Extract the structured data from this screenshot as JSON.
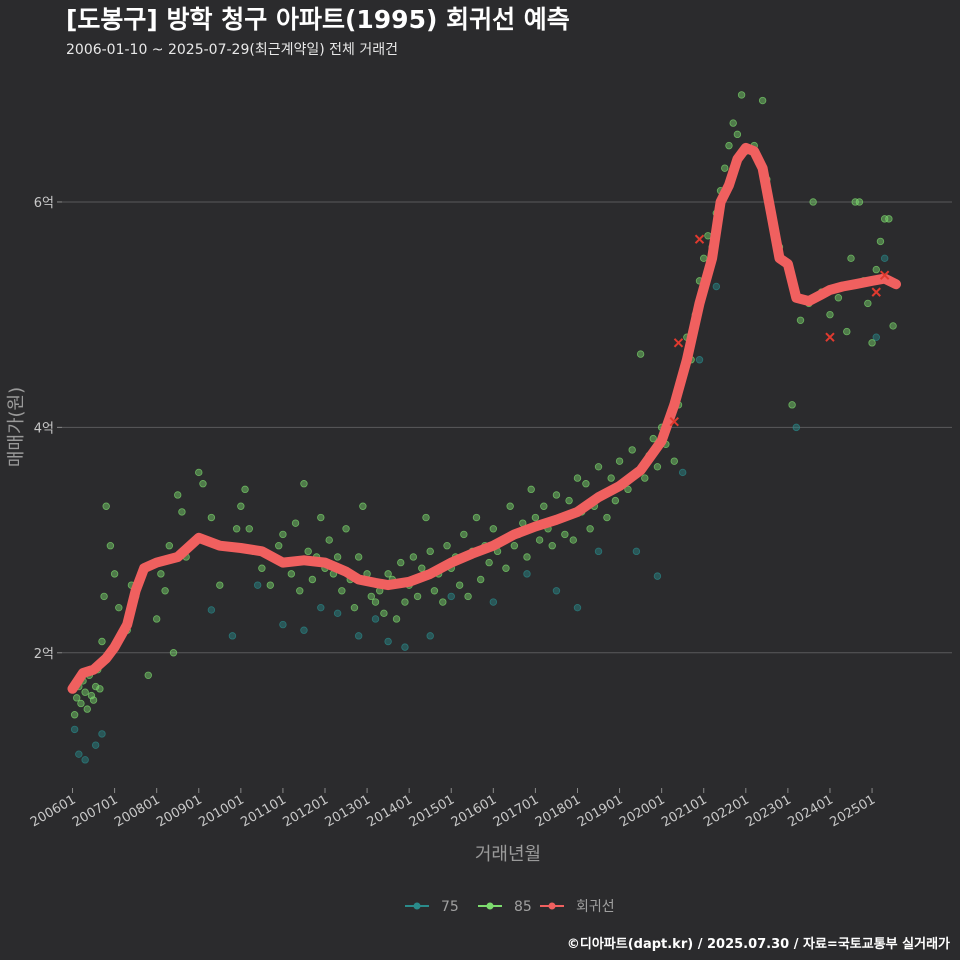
{
  "chart_data": {
    "type": "scatter",
    "title": "[도봉구] 방학 청구 아파트(1995) 회귀선 예측",
    "subtitle": "2006-01-10 ~ 2025-07-29(최근계약일) 전체 거래건",
    "xlabel": "거래년월",
    "ylabel": "매매가(원)",
    "caption": "©디아파트(dapt.kr) / 2025.07.30 / 자료=국토교통부 실거래가",
    "x_tick_labels": [
      "200601",
      "200701",
      "200801",
      "200901",
      "201001",
      "201101",
      "201201",
      "201301",
      "201401",
      "201501",
      "201601",
      "201701",
      "201801",
      "201901",
      "202001",
      "202101",
      "202201",
      "202301",
      "202401",
      "202501"
    ],
    "y_tick_labels": [
      {
        "value": 2,
        "label": "2억"
      },
      {
        "value": 4,
        "label": "4억"
      },
      {
        "value": 6,
        "label": "6억"
      }
    ],
    "xlim": [
      2005.75,
      2026.9
    ],
    "ylim": [
      0.8,
      7.1
    ],
    "grid": true,
    "legend_position": "bottom",
    "legend": [
      {
        "name": "75",
        "color": "#2a8b8b"
      },
      {
        "name": "85",
        "color": "#7ddc6e"
      },
      {
        "name": "회귀선",
        "color": "#f0605f"
      }
    ],
    "series": [
      {
        "name": "75",
        "color": "#2a8b8b",
        "points": [
          [
            2006.05,
            1.32
          ],
          [
            2006.15,
            1.1
          ],
          [
            2006.3,
            1.05
          ],
          [
            2006.55,
            1.18
          ],
          [
            2006.7,
            1.28
          ],
          [
            2009.3,
            2.38
          ],
          [
            2009.8,
            2.15
          ],
          [
            2010.4,
            2.6
          ],
          [
            2011.0,
            2.25
          ],
          [
            2011.5,
            2.2
          ],
          [
            2011.9,
            2.4
          ],
          [
            2012.3,
            2.35
          ],
          [
            2012.8,
            2.15
          ],
          [
            2013.2,
            2.3
          ],
          [
            2013.5,
            2.1
          ],
          [
            2013.9,
            2.05
          ],
          [
            2014.5,
            2.15
          ],
          [
            2015.0,
            2.5
          ],
          [
            2016.0,
            2.45
          ],
          [
            2016.8,
            2.7
          ],
          [
            2017.5,
            2.55
          ],
          [
            2018.0,
            2.4
          ],
          [
            2018.5,
            2.9
          ],
          [
            2019.4,
            2.9
          ],
          [
            2019.9,
            2.68
          ],
          [
            2020.5,
            3.6
          ],
          [
            2020.9,
            4.6
          ],
          [
            2021.3,
            5.25
          ],
          [
            2023.2,
            4.0
          ],
          [
            2025.1,
            4.8
          ],
          [
            2025.3,
            5.5
          ]
        ]
      },
      {
        "name": "85",
        "color": "#7ddc6e",
        "points": [
          [
            2006.05,
            1.45
          ],
          [
            2006.1,
            1.6
          ],
          [
            2006.15,
            1.7
          ],
          [
            2006.2,
            1.55
          ],
          [
            2006.25,
            1.75
          ],
          [
            2006.3,
            1.65
          ],
          [
            2006.35,
            1.5
          ],
          [
            2006.4,
            1.8
          ],
          [
            2006.45,
            1.62
          ],
          [
            2006.5,
            1.58
          ],
          [
            2006.55,
            1.7
          ],
          [
            2006.6,
            1.85
          ],
          [
            2006.65,
            1.68
          ],
          [
            2006.7,
            2.1
          ],
          [
            2006.75,
            2.5
          ],
          [
            2006.8,
            3.3
          ],
          [
            2006.9,
            2.95
          ],
          [
            2007.0,
            2.7
          ],
          [
            2007.1,
            2.4
          ],
          [
            2007.3,
            2.2
          ],
          [
            2007.4,
            2.6
          ],
          [
            2007.5,
            2.5
          ],
          [
            2007.6,
            2.65
          ],
          [
            2007.8,
            1.8
          ],
          [
            2008.0,
            2.3
          ],
          [
            2008.1,
            2.7
          ],
          [
            2008.2,
            2.55
          ],
          [
            2008.3,
            2.95
          ],
          [
            2008.4,
            2.0
          ],
          [
            2008.5,
            3.4
          ],
          [
            2008.6,
            3.25
          ],
          [
            2008.7,
            2.85
          ],
          [
            2008.9,
            3.0
          ],
          [
            2009.0,
            3.6
          ],
          [
            2009.1,
            3.5
          ],
          [
            2009.3,
            3.2
          ],
          [
            2009.5,
            2.6
          ],
          [
            2009.7,
            2.95
          ],
          [
            2009.9,
            3.1
          ],
          [
            2010.0,
            3.3
          ],
          [
            2010.1,
            3.45
          ],
          [
            2010.2,
            3.1
          ],
          [
            2010.3,
            2.9
          ],
          [
            2010.5,
            2.75
          ],
          [
            2010.7,
            2.6
          ],
          [
            2010.9,
            2.95
          ],
          [
            2011.0,
            3.05
          ],
          [
            2011.1,
            2.8
          ],
          [
            2011.2,
            2.7
          ],
          [
            2011.3,
            3.15
          ],
          [
            2011.4,
            2.55
          ],
          [
            2011.5,
            3.5
          ],
          [
            2011.6,
            2.9
          ],
          [
            2011.7,
            2.65
          ],
          [
            2011.8,
            2.85
          ],
          [
            2011.9,
            3.2
          ],
          [
            2012.0,
            2.75
          ],
          [
            2012.1,
            3.0
          ],
          [
            2012.2,
            2.7
          ],
          [
            2012.3,
            2.85
          ],
          [
            2012.4,
            2.55
          ],
          [
            2012.5,
            3.1
          ],
          [
            2012.6,
            2.65
          ],
          [
            2012.7,
            2.4
          ],
          [
            2012.8,
            2.85
          ],
          [
            2012.9,
            3.3
          ],
          [
            2013.0,
            2.7
          ],
          [
            2013.1,
            2.5
          ],
          [
            2013.2,
            2.45
          ],
          [
            2013.3,
            2.55
          ],
          [
            2013.4,
            2.35
          ],
          [
            2013.5,
            2.7
          ],
          [
            2013.6,
            2.65
          ],
          [
            2013.7,
            2.3
          ],
          [
            2013.8,
            2.8
          ],
          [
            2013.9,
            2.45
          ],
          [
            2014.0,
            2.6
          ],
          [
            2014.1,
            2.85
          ],
          [
            2014.2,
            2.5
          ],
          [
            2014.3,
            2.75
          ],
          [
            2014.4,
            3.2
          ],
          [
            2014.5,
            2.9
          ],
          [
            2014.6,
            2.55
          ],
          [
            2014.7,
            2.7
          ],
          [
            2014.8,
            2.45
          ],
          [
            2014.9,
            2.95
          ],
          [
            2015.0,
            2.75
          ],
          [
            2015.1,
            2.85
          ],
          [
            2015.2,
            2.6
          ],
          [
            2015.3,
            3.05
          ],
          [
            2015.4,
            2.5
          ],
          [
            2015.5,
            2.9
          ],
          [
            2015.6,
            3.2
          ],
          [
            2015.7,
            2.65
          ],
          [
            2015.8,
            2.95
          ],
          [
            2015.9,
            2.8
          ],
          [
            2016.0,
            3.1
          ],
          [
            2016.1,
            2.9
          ],
          [
            2016.2,
            3.0
          ],
          [
            2016.3,
            2.75
          ],
          [
            2016.4,
            3.3
          ],
          [
            2016.5,
            2.95
          ],
          [
            2016.6,
            3.05
          ],
          [
            2016.7,
            3.15
          ],
          [
            2016.8,
            2.85
          ],
          [
            2016.9,
            3.45
          ],
          [
            2017.0,
            3.2
          ],
          [
            2017.1,
            3.0
          ],
          [
            2017.2,
            3.3
          ],
          [
            2017.3,
            3.1
          ],
          [
            2017.4,
            2.95
          ],
          [
            2017.5,
            3.4
          ],
          [
            2017.6,
            3.2
          ],
          [
            2017.7,
            3.05
          ],
          [
            2017.8,
            3.35
          ],
          [
            2017.9,
            3.0
          ],
          [
            2018.0,
            3.55
          ],
          [
            2018.1,
            3.25
          ],
          [
            2018.2,
            3.5
          ],
          [
            2018.3,
            3.1
          ],
          [
            2018.4,
            3.3
          ],
          [
            2018.5,
            3.65
          ],
          [
            2018.6,
            3.4
          ],
          [
            2018.7,
            3.2
          ],
          [
            2018.8,
            3.55
          ],
          [
            2018.9,
            3.35
          ],
          [
            2019.0,
            3.7
          ],
          [
            2019.1,
            3.5
          ],
          [
            2019.2,
            3.45
          ],
          [
            2019.3,
            3.8
          ],
          [
            2019.4,
            3.6
          ],
          [
            2019.5,
            4.65
          ],
          [
            2019.6,
            3.55
          ],
          [
            2019.7,
            3.75
          ],
          [
            2019.8,
            3.9
          ],
          [
            2019.9,
            3.65
          ],
          [
            2020.0,
            4.0
          ],
          [
            2020.1,
            3.85
          ],
          [
            2020.2,
            4.1
          ],
          [
            2020.3,
            3.7
          ],
          [
            2020.4,
            4.2
          ],
          [
            2020.5,
            4.5
          ],
          [
            2020.6,
            4.8
          ],
          [
            2020.7,
            4.6
          ],
          [
            2020.8,
            5.0
          ],
          [
            2020.9,
            5.3
          ],
          [
            2021.0,
            5.5
          ],
          [
            2021.1,
            5.7
          ],
          [
            2021.2,
            5.6
          ],
          [
            2021.3,
            5.9
          ],
          [
            2021.4,
            6.1
          ],
          [
            2021.5,
            6.3
          ],
          [
            2021.6,
            6.5
          ],
          [
            2021.7,
            6.7
          ],
          [
            2021.8,
            6.6
          ],
          [
            2021.9,
            6.95
          ],
          [
            2022.0,
            6.45
          ],
          [
            2022.2,
            6.5
          ],
          [
            2022.3,
            6.35
          ],
          [
            2022.4,
            6.9
          ],
          [
            2022.5,
            6.2
          ],
          [
            2022.8,
            5.6
          ],
          [
            2023.1,
            4.2
          ],
          [
            2023.3,
            4.95
          ],
          [
            2023.5,
            5.1
          ],
          [
            2023.6,
            6.0
          ],
          [
            2023.8,
            5.2
          ],
          [
            2024.0,
            5.0
          ],
          [
            2024.2,
            5.15
          ],
          [
            2024.4,
            4.85
          ],
          [
            2024.5,
            5.5
          ],
          [
            2024.6,
            6.0
          ],
          [
            2024.7,
            6.0
          ],
          [
            2024.8,
            5.3
          ],
          [
            2024.9,
            5.1
          ],
          [
            2025.0,
            4.75
          ],
          [
            2025.1,
            5.4
          ],
          [
            2025.2,
            5.65
          ],
          [
            2025.3,
            5.85
          ],
          [
            2025.4,
            5.85
          ],
          [
            2025.5,
            4.9
          ]
        ]
      }
    ],
    "regression": {
      "name": "회귀선",
      "color": "#f0605f",
      "points": [
        [
          2006.0,
          1.68
        ],
        [
          2006.25,
          1.82
        ],
        [
          2006.5,
          1.85
        ],
        [
          2006.8,
          1.95
        ],
        [
          2007.0,
          2.05
        ],
        [
          2007.3,
          2.25
        ],
        [
          2007.5,
          2.55
        ],
        [
          2007.7,
          2.75
        ],
        [
          2008.0,
          2.8
        ],
        [
          2008.5,
          2.85
        ],
        [
          2009.0,
          3.02
        ],
        [
          2009.5,
          2.95
        ],
        [
          2010.0,
          2.93
        ],
        [
          2010.5,
          2.9
        ],
        [
          2011.0,
          2.8
        ],
        [
          2011.5,
          2.82
        ],
        [
          2012.0,
          2.8
        ],
        [
          2012.5,
          2.72
        ],
        [
          2012.8,
          2.65
        ],
        [
          2013.2,
          2.62
        ],
        [
          2013.5,
          2.6
        ],
        [
          2014.0,
          2.63
        ],
        [
          2014.5,
          2.7
        ],
        [
          2015.0,
          2.8
        ],
        [
          2015.5,
          2.88
        ],
        [
          2016.0,
          2.95
        ],
        [
          2016.5,
          3.05
        ],
        [
          2017.0,
          3.12
        ],
        [
          2017.5,
          3.18
        ],
        [
          2018.0,
          3.25
        ],
        [
          2018.5,
          3.38
        ],
        [
          2019.0,
          3.48
        ],
        [
          2019.5,
          3.62
        ],
        [
          2020.0,
          3.88
        ],
        [
          2020.3,
          4.2
        ],
        [
          2020.6,
          4.6
        ],
        [
          2020.9,
          5.1
        ],
        [
          2021.2,
          5.5
        ],
        [
          2021.4,
          6.0
        ],
        [
          2021.6,
          6.15
        ],
        [
          2021.8,
          6.38
        ],
        [
          2022.0,
          6.48
        ],
        [
          2022.2,
          6.45
        ],
        [
          2022.4,
          6.3
        ],
        [
          2022.6,
          5.9
        ],
        [
          2022.8,
          5.5
        ],
        [
          2023.0,
          5.45
        ],
        [
          2023.2,
          5.15
        ],
        [
          2023.5,
          5.12
        ],
        [
          2023.8,
          5.18
        ],
        [
          2024.0,
          5.22
        ],
        [
          2024.3,
          5.25
        ],
        [
          2024.6,
          5.27
        ],
        [
          2025.0,
          5.3
        ],
        [
          2025.3,
          5.32
        ],
        [
          2025.57,
          5.27
        ]
      ]
    },
    "markers_x": [
      [
        2020.4,
        4.75
      ],
      [
        2020.3,
        4.05
      ],
      [
        2020.9,
        5.67
      ],
      [
        2024.0,
        4.8
      ],
      [
        2025.1,
        5.2
      ],
      [
        2025.3,
        5.35
      ]
    ]
  }
}
